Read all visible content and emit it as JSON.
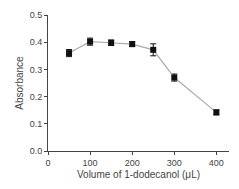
{
  "chart_data": {
    "type": "line",
    "x": [
      50,
      100,
      150,
      200,
      250,
      300,
      400
    ],
    "series": [
      {
        "values": [
          0.36,
          0.402,
          0.398,
          0.393,
          0.372,
          0.27,
          0.142
        ],
        "yerr": [
          0.013,
          0.013,
          0.01,
          0.009,
          0.022,
          0.013,
          0.009
        ],
        "color": "#aaaaaa",
        "colors": [
          "#111111",
          "#111111",
          "#111111",
          "#111111",
          "#111111",
          "#111111",
          "#111111"
        ],
        "marker": "square",
        "line_style": "solid"
      }
    ],
    "xlabel": "Volume of 1-dodecanol (μL)",
    "ylabel": "Absorbance",
    "xlim": [
      0,
      430
    ],
    "ylim": [
      0.0,
      0.5
    ],
    "xticks": [
      0,
      100,
      200,
      300,
      400
    ],
    "yticks": [
      {
        "value": 0.0,
        "label": "0.0"
      },
      0.1,
      0.2,
      0.3,
      0.4,
      0.5
    ],
    "grid": false
  }
}
